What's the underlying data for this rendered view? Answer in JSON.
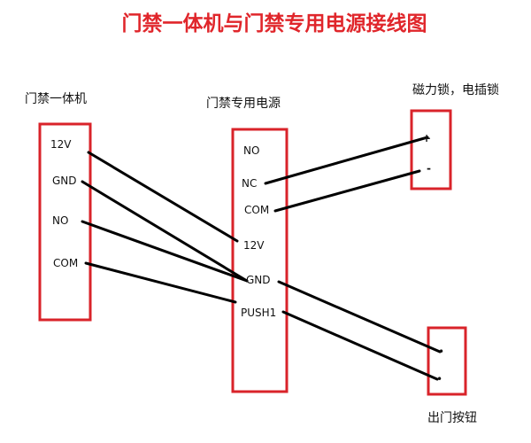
{
  "title": "门禁一体机与门禁专用电源接线图",
  "colors": {
    "title": "#e0262b",
    "box": "#d9232a",
    "wire": "#000000"
  },
  "controller": {
    "caption": "门禁一体机",
    "terminals": [
      "12V",
      "GND",
      "NO",
      "COM"
    ]
  },
  "power_supply": {
    "caption": "门禁专用电源",
    "terminals": [
      "NO",
      "NC",
      "COM",
      "12V",
      "GND",
      "PUSH1"
    ]
  },
  "lock": {
    "caption": "磁力锁，电插锁",
    "terminals": [
      "+",
      "-"
    ]
  },
  "exit_button": {
    "caption": "出门按钮",
    "terminals": [
      "•",
      "•"
    ]
  },
  "wires": [
    {
      "from": "controller.12V",
      "to": "power_supply.12V"
    },
    {
      "from": "controller.GND",
      "to": "power_supply.GND"
    },
    {
      "from": "controller.NO",
      "to": "power_supply.GND"
    },
    {
      "from": "controller.COM",
      "to": "power_supply.PUSH1"
    },
    {
      "from": "power_supply.NC",
      "to": "lock.+"
    },
    {
      "from": "power_supply.COM",
      "to": "lock.-"
    },
    {
      "from": "power_supply.GND",
      "to": "exit_button.1"
    },
    {
      "from": "power_supply.PUSH1",
      "to": "exit_button.2"
    }
  ]
}
